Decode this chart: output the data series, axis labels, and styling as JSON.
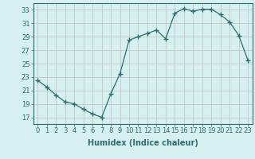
{
  "x": [
    0,
    1,
    2,
    3,
    4,
    5,
    6,
    7,
    8,
    9,
    10,
    11,
    12,
    13,
    14,
    15,
    16,
    17,
    18,
    19,
    20,
    21,
    22,
    23
  ],
  "y": [
    22.5,
    21.5,
    20.3,
    19.3,
    19.0,
    18.2,
    17.5,
    17.0,
    20.5,
    23.5,
    28.5,
    29.0,
    29.5,
    30.0,
    28.7,
    32.5,
    33.2,
    32.8,
    33.1,
    33.1,
    32.3,
    31.2,
    29.2,
    25.5
  ],
  "line_color": "#2d6e6e",
  "marker": "+",
  "marker_size": 4,
  "bg_color": "#d5f0ee",
  "grid_color": "#c0c0c0",
  "xlabel": "Humidex (Indice chaleur)",
  "xlim": [
    -0.5,
    23.5
  ],
  "ylim": [
    16.0,
    34.0
  ],
  "yticks": [
    17,
    19,
    21,
    23,
    25,
    27,
    29,
    31,
    33
  ],
  "xticks": [
    0,
    1,
    2,
    3,
    4,
    5,
    6,
    7,
    8,
    9,
    10,
    11,
    12,
    13,
    14,
    15,
    16,
    17,
    18,
    19,
    20,
    21,
    22,
    23
  ],
  "tick_color": "#2d6e6e",
  "label_color": "#2d6e6e",
  "axis_label_fontsize": 7,
  "tick_fontsize": 6,
  "xlabel_fontsize": 7,
  "lw": 0.9
}
